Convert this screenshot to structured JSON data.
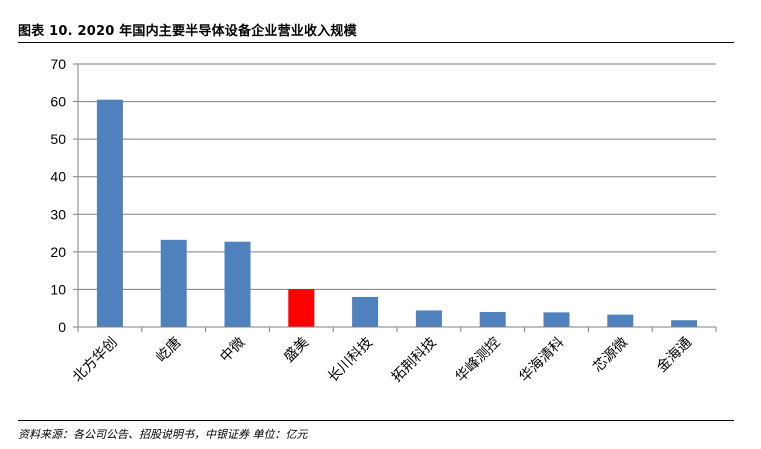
{
  "header": {
    "title": "图表 10. 2020 年国内主要半导体设备企业营业收入规模"
  },
  "footer": {
    "source": "资料来源：各公司公告、招股说明书，中银证券  单位：亿元"
  },
  "chart_data": {
    "type": "bar",
    "categories": [
      "北方华创",
      "屹唐",
      "中微",
      "盛美",
      "长川科技",
      "拓荆科技",
      "华峰测控",
      "华海清科",
      "芯源微",
      "金海通"
    ],
    "values": [
      60.5,
      23.2,
      22.7,
      10.1,
      8.0,
      4.4,
      4.0,
      3.9,
      3.3,
      1.8
    ],
    "title": "图表 10. 2020 年国内主要半导体设备企业营业收入规模",
    "xlabel": "",
    "ylabel": "",
    "ylim": [
      0,
      70
    ],
    "yticks": [
      0,
      10,
      20,
      30,
      40,
      50,
      60,
      70
    ],
    "grid": true,
    "legend": "none",
    "colors": {
      "default": "#4f81bd",
      "highlight": "#ff0000",
      "grid": "#808080",
      "axis": "#808080"
    },
    "highlight_index": 3
  }
}
